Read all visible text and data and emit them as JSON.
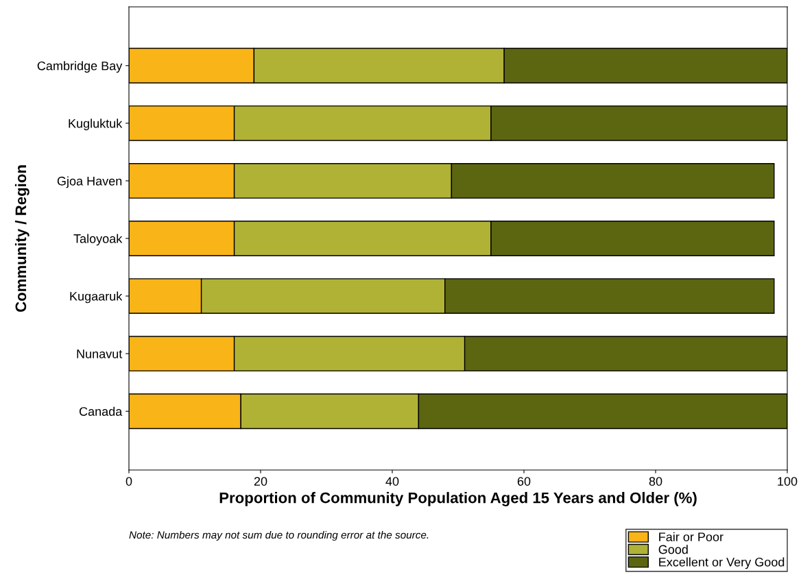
{
  "chart_data": {
    "type": "bar",
    "orientation": "horizontal",
    "stacked": true,
    "categories": [
      "Cambridge Bay",
      "Kugluktuk",
      "Gjoa Haven",
      "Taloyoak",
      "Kugaaruk",
      "Nunavut",
      "Canada"
    ],
    "series": [
      {
        "name": "Fair or Poor",
        "color": "#f9b418",
        "values": [
          19,
          16,
          16,
          16,
          11,
          16,
          17
        ]
      },
      {
        "name": "Good",
        "color": "#b0b236",
        "values": [
          38,
          39,
          33,
          39,
          37,
          35,
          27
        ]
      },
      {
        "name": "Excellent or Very Good",
        "color": "#5c6611",
        "values": [
          43,
          45,
          49,
          43,
          50,
          49,
          56
        ]
      }
    ],
    "xlim": [
      0,
      100
    ],
    "xticks": [
      0,
      20,
      40,
      60,
      80,
      100
    ],
    "xlabel": "Proportion of Community Population Aged 15 Years and Older (%)",
    "ylabel": "Community / Region",
    "annotations": [
      "Note: Numbers may not sum due to rounding error at the source."
    ],
    "legend": "bottom right",
    "grid": false
  }
}
